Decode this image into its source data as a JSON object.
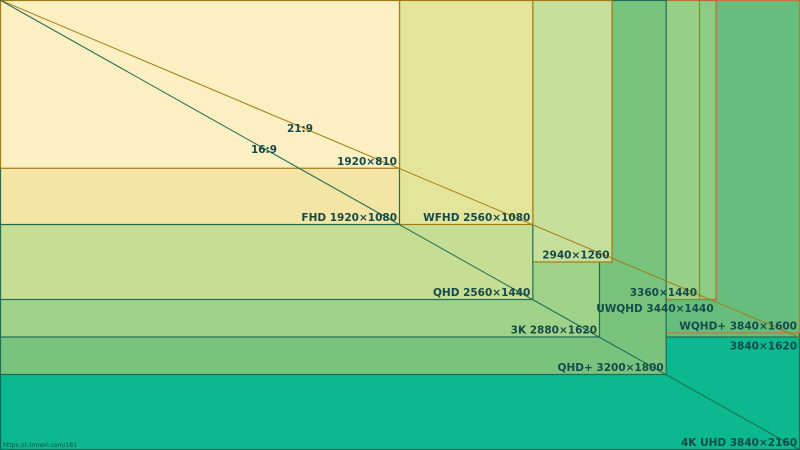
{
  "title_ratios": [
    "21:9",
    "16:9"
  ],
  "source": "https://c.lmnori.com/181",
  "rects": [
    {
      "label": "4K UHD 3840×2160",
      "fill": "#0cb88e",
      "stroke": "#0b6a5a"
    },
    {
      "label": "3840×1620",
      "fill": "#67bd7c",
      "stroke": "#1f6b55"
    },
    {
      "label": "WQHD+ 3840×1600",
      "fill": "#67bd7c",
      "stroke": "#d0703a"
    },
    {
      "label": "UWQHD 3440×1440",
      "fill": "#8fcb84",
      "stroke": "#c8603a"
    },
    {
      "label": "3360×1440",
      "fill": "#98cf87",
      "stroke": "#b8702a"
    },
    {
      "label": "QHD+ 3200×1800",
      "fill": "#78c47f",
      "stroke": "#1f6b55"
    },
    {
      "label": "3K 2880×1620",
      "fill": "#9fd38a",
      "stroke": "#1f6b55"
    },
    {
      "label": "2940×1260",
      "fill": "#c6e09c",
      "stroke": "#a57a12"
    },
    {
      "label": "QHD 2560×1440",
      "fill": "#c6de93",
      "stroke": "#1f6b55"
    },
    {
      "label": "WFHD 2560×1080",
      "fill": "#e4e59a",
      "stroke": "#a57a12"
    },
    {
      "label": "FHD 1920×1080",
      "fill": "#f5e5a4",
      "stroke": "#1f6b55"
    },
    {
      "label": "1920×810",
      "fill": "#fcefc2",
      "stroke": "#a57a12"
    }
  ]
}
